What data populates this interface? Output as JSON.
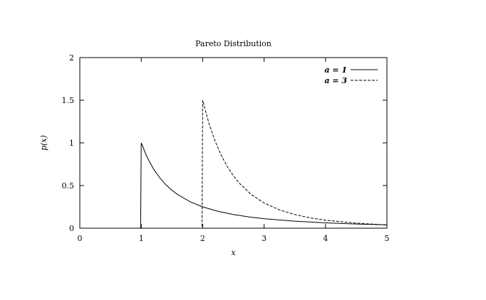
{
  "chart_data": {
    "type": "line",
    "title": "Pareto Distribution",
    "xlabel": "x",
    "ylabel": "p(x)",
    "xlim": [
      0,
      5
    ],
    "ylim": [
      0,
      2
    ],
    "x_ticks": [
      "0",
      "1",
      "2",
      "3",
      "4",
      "5"
    ],
    "y_ticks": [
      "0",
      "0.5",
      "1",
      "1.5",
      "2"
    ],
    "grid": false,
    "legend_position": "top-right",
    "series": [
      {
        "name": "a = 1",
        "style": "solid",
        "color": "#000000",
        "points": [
          [
            0,
            0
          ],
          [
            0.99,
            0
          ],
          [
            1.0,
            1.0
          ],
          [
            1.1,
            0.826
          ],
          [
            1.2,
            0.694
          ],
          [
            1.3,
            0.592
          ],
          [
            1.4,
            0.51
          ],
          [
            1.5,
            0.444
          ],
          [
            1.6,
            0.391
          ],
          [
            1.8,
            0.309
          ],
          [
            2.0,
            0.25
          ],
          [
            2.25,
            0.198
          ],
          [
            2.5,
            0.16
          ],
          [
            2.75,
            0.132
          ],
          [
            3.0,
            0.111
          ],
          [
            3.5,
            0.082
          ],
          [
            4.0,
            0.0625
          ],
          [
            4.5,
            0.049
          ],
          [
            5.0,
            0.04
          ]
        ]
      },
      {
        "name": "a = 3",
        "style": "dashed",
        "color": "#000000",
        "points": [
          [
            0,
            0
          ],
          [
            1.99,
            0
          ],
          [
            2.0,
            1.5
          ],
          [
            2.1,
            1.234
          ],
          [
            2.2,
            1.025
          ],
          [
            2.3,
            0.858
          ],
          [
            2.4,
            0.723
          ],
          [
            2.5,
            0.614
          ],
          [
            2.6,
            0.525
          ],
          [
            2.8,
            0.39
          ],
          [
            3.0,
            0.296
          ],
          [
            3.25,
            0.215
          ],
          [
            3.5,
            0.16
          ],
          [
            3.75,
            0.121
          ],
          [
            4.0,
            0.094
          ],
          [
            4.5,
            0.059
          ],
          [
            5.0,
            0.038
          ]
        ]
      }
    ]
  }
}
